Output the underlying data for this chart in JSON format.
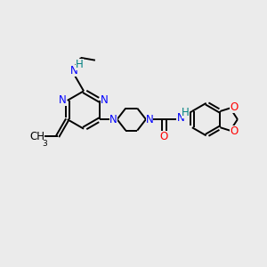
{
  "bg_color": "#ebebeb",
  "N_color": "#0000ff",
  "O_color": "#ff0000",
  "H_color": "#008080",
  "bond_color": "#000000",
  "font_size": 8.5,
  "line_width": 1.4,
  "figsize": [
    3.0,
    3.0
  ],
  "dpi": 100,
  "xlim": [
    0,
    10
  ],
  "ylim": [
    0,
    10
  ]
}
